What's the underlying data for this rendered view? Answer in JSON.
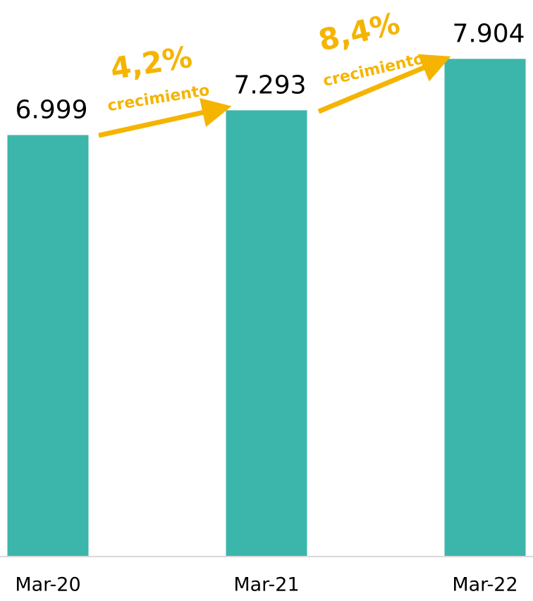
{
  "chart_data": {
    "type": "bar",
    "categories": [
      "Mar-20",
      "Mar-21",
      "Mar-22"
    ],
    "values": [
      6999,
      7293,
      7904
    ],
    "value_labels": [
      "6.999",
      "7.293",
      "7.904"
    ],
    "color": "#3cb6aa",
    "ylim": [
      2000,
      8000
    ],
    "annotations": [
      {
        "value": "4,2%",
        "text": "crecimiento"
      },
      {
        "value": "8,4%",
        "text": "crecimiento"
      }
    ],
    "annotation_color": "#f5b400"
  }
}
